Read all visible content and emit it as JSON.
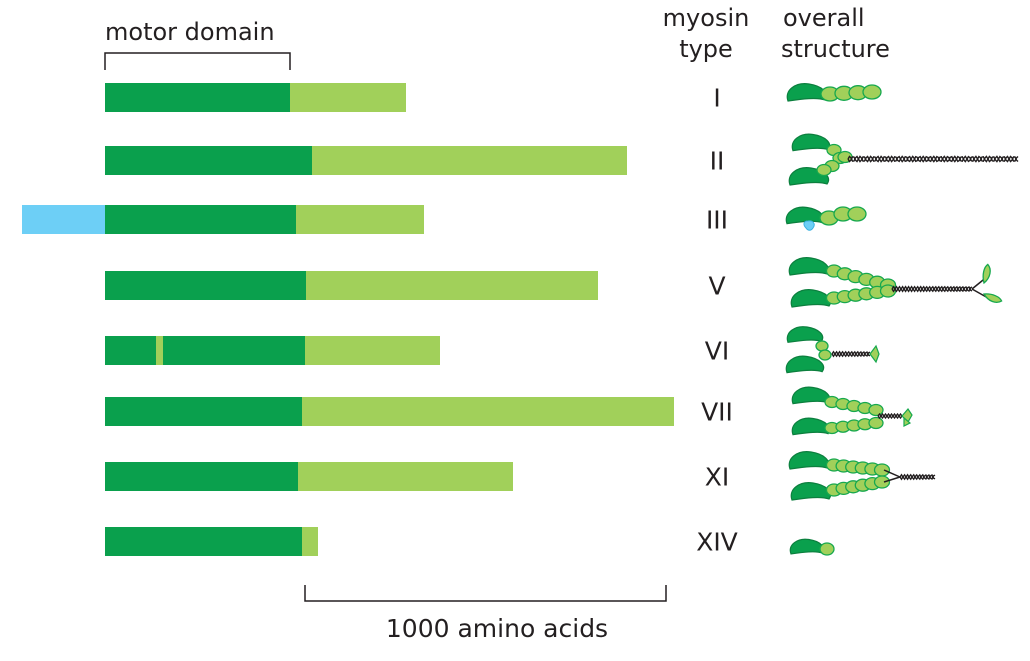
{
  "labels": {
    "motor_domain": "motor domain",
    "myosin_type_line1": "myosin",
    "myosin_type_line2": "type",
    "overall_structure_line1": "overall",
    "overall_structure_line2": "structure",
    "scale_bar": "1000 amino acids"
  },
  "colors": {
    "motor": "#0aa04d",
    "tail": "#a1d05a",
    "n_terminal_extension": "#6dcff6",
    "neck_outline": "#17a84e",
    "coil": "#231f20"
  },
  "rows": [
    {
      "type": "I",
      "structure_icon": "single-head-short-neck"
    },
    {
      "type": "II",
      "structure_icon": "two-head-long-coiled-coil"
    },
    {
      "type": "III",
      "structure_icon": "single-head-kinase"
    },
    {
      "type": "V",
      "structure_icon": "two-head-long-neck-coiled-coil-globular-tail"
    },
    {
      "type": "VI",
      "structure_icon": "two-head-short-coil"
    },
    {
      "type": "VII",
      "structure_icon": "two-head-short-coil-globular-tail"
    },
    {
      "type": "XI",
      "structure_icon": "two-head-long-neck-coil"
    },
    {
      "type": "XIV",
      "structure_icon": "single-head-minimal"
    }
  ]
}
